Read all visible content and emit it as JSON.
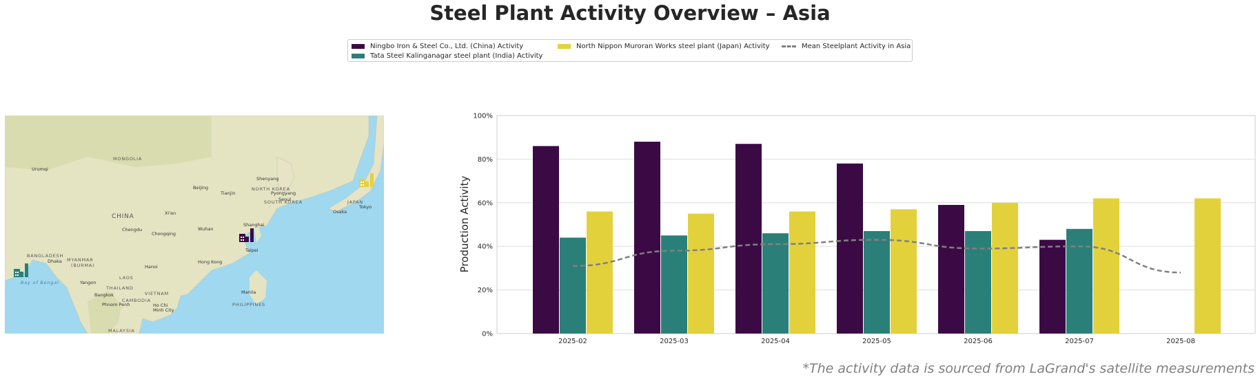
{
  "title": "Steel Plant Activity Overview – Asia",
  "source_note": "*The activity data is sourced from LaGrand's satellite measurements",
  "legend": [
    {
      "label": "Ningbo Iron & Steel Co., Ltd. (China) Activity",
      "color": "#3b0a45",
      "kind": "bar"
    },
    {
      "label": "Tata Steel Kalinganagar steel plant (India) Activity",
      "color": "#2a8078",
      "kind": "bar"
    },
    {
      "label": "North Nippon Muroran Works steel plant (Japan) Activity",
      "color": "#e3d13c",
      "kind": "bar"
    },
    {
      "label": "Mean Steelplant Activity in Asia",
      "color": "#808080",
      "kind": "line"
    }
  ],
  "map": {
    "labels": {
      "mongolia": "MONGOLIA",
      "china": "CHINA",
      "north_korea": "NORTH KOREA",
      "south_korea": "SOUTH KOREA",
      "japan": "JAPAN",
      "bangladesh": "BANGLADESH",
      "myanmar": "MYANMAR",
      "burma": "(BURMA)",
      "laos": "LAOS",
      "thailand": "THAILAND",
      "vietnam": "VIETNAM",
      "cambodia": "CAMBODIA",
      "philippines": "PHILIPPINES",
      "malaysia": "MALAYSIA",
      "bay_of_bengal": "Bay of Bengal",
      "urumqi": "Urumqi",
      "beijing": "Beijing",
      "tianjin": "Tianjin",
      "shenyang": "Shenyang",
      "pyongyang": "Pyongyang",
      "seoul": "Seoul",
      "osaka": "Osaka",
      "tokyo": "Tokyo",
      "xian": "Xi'an",
      "chengdu": "Chengdu",
      "chongqing": "Chongqing",
      "wuhan": "Wuhan",
      "shanghai": "Shanghai",
      "taipei": "Taipei",
      "hong_kong": "Hong Kong",
      "hanoi": "Hanoi",
      "dhaka": "Dhaka",
      "yangon": "Yangon",
      "bangkok": "Bangkok",
      "phnom_penh": "Phnom Penh",
      "ho_chi_minh": "Ho Chi",
      "ho_chi_minh_2": "Minh City",
      "manila": "Manila"
    }
  },
  "chart_data": {
    "type": "bar",
    "categories": [
      "2025-02",
      "2025-03",
      "2025-04",
      "2025-05",
      "2025-06",
      "2025-07",
      "2025-08"
    ],
    "series": [
      {
        "name": "Ningbo Iron & Steel Co., Ltd. (China) Activity",
        "color": "#3b0a45",
        "values": [
          86,
          88,
          87,
          78,
          59,
          43,
          null
        ]
      },
      {
        "name": "Tata Steel Kalinganagar steel plant (India) Activity",
        "color": "#2a8078",
        "values": [
          44,
          45,
          46,
          47,
          47,
          48,
          null
        ]
      },
      {
        "name": "North Nippon Muroran Works steel plant (Japan) Activity",
        "color": "#e3d13c",
        "values": [
          56,
          55,
          56,
          57,
          60,
          62,
          62
        ]
      }
    ],
    "line_series": {
      "name": "Mean Steelplant Activity in Asia",
      "color": "#808080",
      "values": [
        31,
        38,
        41,
        43,
        39,
        40,
        28
      ]
    },
    "ylabel": "Production Activity",
    "xlabel": "",
    "ylim": [
      0,
      100
    ],
    "yticks": [
      "0%",
      "20%",
      "40%",
      "60%",
      "80%",
      "100%"
    ],
    "grid": true,
    "legend_position": "top-center"
  }
}
